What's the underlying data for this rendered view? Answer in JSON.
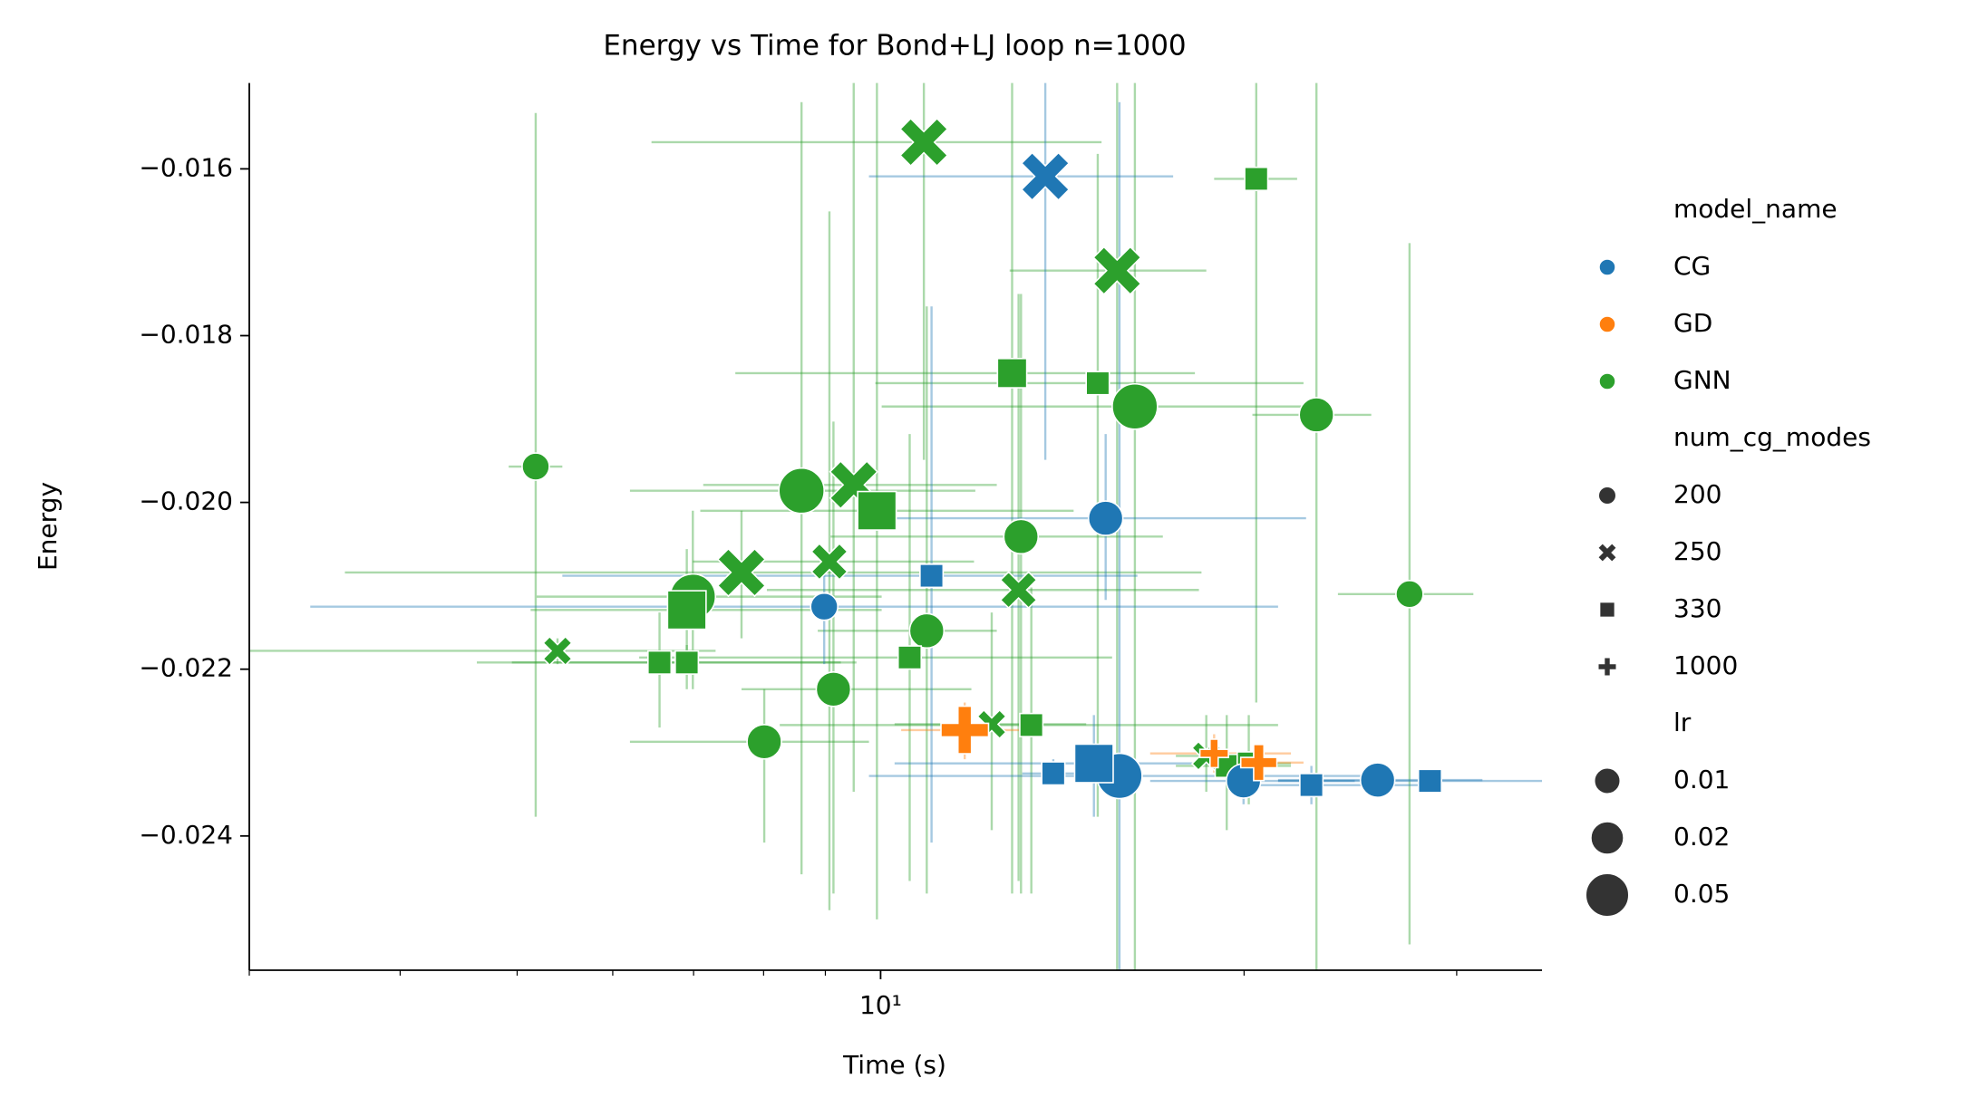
{
  "chart_data": {
    "type": "scatter",
    "title": "Energy vs Time for Bond+LJ loop n=1000",
    "x_label": "Time (s)",
    "y_label": "Energy",
    "xscale": "log",
    "xlim": [
      3.0,
      35.3
    ],
    "ylim": [
      -0.02561,
      -0.01497
    ],
    "xticks": [
      {
        "value": 10,
        "label": "10¹"
      }
    ],
    "xminorticks": [
      3,
      4,
      5,
      6,
      7,
      8,
      9,
      20,
      30
    ],
    "yticks": [
      {
        "value": -0.016,
        "label": "−0.016"
      },
      {
        "value": -0.018,
        "label": "−0.018"
      },
      {
        "value": -0.02,
        "label": "−0.020"
      },
      {
        "value": -0.022,
        "label": "−0.022"
      },
      {
        "value": -0.024,
        "label": "−0.024"
      }
    ],
    "hue": {
      "title": "model_name",
      "levels": [
        {
          "name": "CG",
          "color": "#1f77b4"
        },
        {
          "name": "GD",
          "color": "#ff7f0e"
        },
        {
          "name": "GNN",
          "color": "#2ca02c"
        }
      ]
    },
    "style": {
      "title": "num_cg_modes",
      "levels": [
        {
          "name": "200",
          "marker": "circle"
        },
        {
          "name": "250",
          "marker": "x"
        },
        {
          "name": "330",
          "marker": "square"
        },
        {
          "name": "1000",
          "marker": "plus"
        }
      ]
    },
    "size": {
      "title": "lr",
      "levels": [
        "0.01",
        "0.02",
        "0.05"
      ]
    },
    "points": [
      {
        "hue": "GNN",
        "style": "250",
        "size": "0.05",
        "x": 10.86,
        "xmin": 6.46,
        "xmax": 15.24,
        "y": -0.01568,
        "ymin": -0.01949,
        "ymax": -0.0149
      },
      {
        "hue": "GNN",
        "style": "250",
        "size": "0.05",
        "x": 15.7,
        "xmin": 12.79,
        "xmax": 18.61,
        "y": -0.01722,
        "ymin": -0.02576,
        "ymax": -0.0149
      },
      {
        "hue": "GNN",
        "style": "330",
        "size": "0.01",
        "x": 20.47,
        "xmin": 18.89,
        "xmax": 22.13,
        "y": -0.01612,
        "ymin": -0.0224,
        "ymax": -0.0149
      },
      {
        "hue": "GNN",
        "style": "330",
        "size": "0.02",
        "x": 12.85,
        "xmin": 7.58,
        "xmax": 18.21,
        "y": -0.01845,
        "ymin": -0.02469,
        "ymax": -0.0149
      },
      {
        "hue": "GNN",
        "style": "330",
        "size": "0.01",
        "x": 15.13,
        "xmin": 9.9,
        "xmax": 22.4,
        "y": -0.01857,
        "ymin": -0.02377,
        "ymax": -0.01582
      },
      {
        "hue": "GNN",
        "style": "200",
        "size": "0.05",
        "x": 16.24,
        "xmin": 10.02,
        "xmax": 22.4,
        "y": -0.01885,
        "ymin": -0.02576,
        "ymax": -0.0149
      },
      {
        "hue": "GNN",
        "style": "200",
        "size": "0.02",
        "x": 22.96,
        "xmin": 20.32,
        "xmax": 25.49,
        "y": -0.01895,
        "ymin": -0.02576,
        "ymax": -0.0149
      },
      {
        "hue": "GNN",
        "style": "200",
        "size": "0.01",
        "x": 5.18,
        "xmin": 4.92,
        "xmax": 5.45,
        "y": -0.01957,
        "ymin": -0.02377,
        "ymax": -0.01533
      },
      {
        "hue": "GNN",
        "style": "200",
        "size": "0.05",
        "x": 8.6,
        "xmin": 6.2,
        "xmax": 11.98,
        "y": -0.01986,
        "ymin": -0.02446,
        "ymax": -0.0152
      },
      {
        "hue": "GNN",
        "style": "250",
        "size": "0.05",
        "x": 9.5,
        "xmin": 7.13,
        "xmax": 12.48,
        "y": -0.01979,
        "ymin": -0.02347,
        "ymax": -0.0149
      },
      {
        "hue": "GNN",
        "style": "330",
        "size": "0.05",
        "x": 9.93,
        "xmin": 7.09,
        "xmax": 14.45,
        "y": -0.0201,
        "ymin": -0.025,
        "ymax": -0.0149
      },
      {
        "hue": "GNN",
        "style": "200",
        "size": "0.02",
        "x": 13.07,
        "xmin": 9.09,
        "xmax": 17.13,
        "y": -0.02041,
        "ymin": -0.02469,
        "ymax": -0.0175
      },
      {
        "hue": "GNN",
        "style": "250",
        "size": "0.02",
        "x": 9.07,
        "xmin": 6.99,
        "xmax": 11.95,
        "y": -0.02071,
        "ymin": -0.02489,
        "ymax": -0.01651
      },
      {
        "hue": "GNN",
        "style": "250",
        "size": "0.05",
        "x": 7.67,
        "xmin": 3.6,
        "xmax": 18.44,
        "y": -0.02084,
        "ymin": -0.02163,
        "ymax": -0.0201
      },
      {
        "hue": "GNN",
        "style": "200",
        "size": "0.05",
        "x": 6.99,
        "xmin": 5.19,
        "xmax": 10.02,
        "y": -0.02113,
        "ymin": -0.02224,
        "ymax": -0.0201
      },
      {
        "hue": "GNN",
        "style": "250",
        "size": "0.02",
        "x": 13.01,
        "xmin": 8.05,
        "xmax": 18.35,
        "y": -0.02105,
        "ymin": -0.02454,
        "ymax": -0.0175
      },
      {
        "hue": "GNN",
        "style": "200",
        "size": "0.01",
        "x": 27.42,
        "xmin": 23.92,
        "xmax": 30.97,
        "y": -0.0211,
        "ymin": -0.0253,
        "ymax": -0.01689
      },
      {
        "hue": "GNN",
        "style": "330",
        "size": "0.05",
        "x": 6.91,
        "xmin": 5.13,
        "xmax": 10.02,
        "y": -0.02129,
        "ymin": -0.02194,
        "ymax": -0.02056
      },
      {
        "hue": "GNN",
        "style": "200",
        "size": "0.02",
        "x": 10.92,
        "xmin": 8.87,
        "xmax": 12.48,
        "y": -0.02154,
        "ymin": -0.02469,
        "ymax": -0.01765
      },
      {
        "hue": "GNN",
        "style": "250",
        "size": "0.01",
        "x": 5.4,
        "xmin": 2.9,
        "xmax": 7.3,
        "y": -0.02178,
        "ymin": -0.02194,
        "ymax": -0.02163
      },
      {
        "hue": "GNN",
        "style": "330",
        "size": "0.01",
        "x": 6.56,
        "xmin": 4.63,
        "xmax": 9.27,
        "y": -0.02192,
        "ymin": -0.0227,
        "ymax": -0.02132
      },
      {
        "hue": "GNN",
        "style": "330",
        "size": "0.01",
        "x": 6.91,
        "xmin": 4.95,
        "xmax": 9.55,
        "y": -0.02192,
        "ymin": -0.02224,
        "ymax": -0.02171
      },
      {
        "hue": "GNN",
        "style": "330",
        "size": "0.01",
        "x": 10.57,
        "xmin": 6.31,
        "xmax": 15.55,
        "y": -0.02186,
        "ymin": -0.02454,
        "ymax": -0.01918
      },
      {
        "hue": "GNN",
        "style": "200",
        "size": "0.02",
        "x": 9.14,
        "xmin": 7.67,
        "xmax": 11.89,
        "y": -0.02224,
        "ymin": -0.02469,
        "ymax": -0.01903
      },
      {
        "hue": "GNN",
        "style": "200",
        "size": "0.02",
        "x": 8.01,
        "xmin": 6.2,
        "xmax": 9.78,
        "y": -0.02287,
        "ymin": -0.02408,
        "ymax": -0.02224
      },
      {
        "hue": "GNN",
        "style": "250",
        "size": "0.01",
        "x": 12.36,
        "xmin": 10.27,
        "xmax": 14.8,
        "y": -0.02266,
        "ymin": -0.02393,
        "ymax": -0.02132
      },
      {
        "hue": "GNN",
        "style": "330",
        "size": "0.01",
        "x": 13.33,
        "xmin": 8.25,
        "xmax": 21.34,
        "y": -0.02267,
        "ymin": -0.02469,
        "ymax": -0.02102
      },
      {
        "hue": "GNN",
        "style": "250",
        "size": "0.01",
        "x": 18.61,
        "xmin": 17.56,
        "xmax": 20.32,
        "y": -0.02304,
        "ymin": -0.02347,
        "ymax": -0.02255
      },
      {
        "hue": "GNN",
        "style": "330",
        "size": "0.01",
        "x": 19.35,
        "xmin": 17.56,
        "xmax": 21.87,
        "y": -0.02316,
        "ymin": -0.02393,
        "ymax": -0.02255
      },
      {
        "hue": "GNN",
        "style": "330",
        "size": "0.01",
        "x": 20.18,
        "xmin": 18.44,
        "xmax": 21.87,
        "y": -0.02313,
        "ymin": -0.02362,
        "ymax": -0.02255
      },
      {
        "hue": "CG",
        "style": "250",
        "size": "0.05",
        "x": 13.69,
        "xmin": 9.78,
        "xmax": 17.47,
        "y": -0.01609,
        "ymin": -0.01949,
        "ymax": -0.0149
      },
      {
        "hue": "CG",
        "style": "200",
        "size": "0.02",
        "x": 15.36,
        "xmin": 10.02,
        "xmax": 22.51,
        "y": -0.02019,
        "ymin": -0.02117,
        "ymax": -0.01918
      },
      {
        "hue": "CG",
        "style": "200",
        "size": "0.01",
        "x": 8.98,
        "xmin": 3.37,
        "xmax": 21.34,
        "y": -0.02125,
        "ymin": -0.02194,
        "ymax": -0.02056
      },
      {
        "hue": "CG",
        "style": "330",
        "size": "0.01",
        "x": 11.02,
        "xmin": 5.45,
        "xmax": 16.32,
        "y": -0.02088,
        "ymin": -0.02408,
        "ymax": -0.01765
      },
      {
        "hue": "CG",
        "style": "200",
        "size": "0.05",
        "x": 15.77,
        "xmin": 9.78,
        "xmax": 25.31,
        "y": -0.02328,
        "ymin": -0.02576,
        "ymax": -0.0152
      },
      {
        "hue": "CG",
        "style": "330",
        "size": "0.05",
        "x": 15.02,
        "xmin": 10.27,
        "xmax": 21.34,
        "y": -0.02313,
        "ymin": -0.02377,
        "ymax": -0.02255
      },
      {
        "hue": "CG",
        "style": "330",
        "size": "0.01",
        "x": 13.9,
        "xmin": 13.1,
        "xmax": 15.55,
        "y": -0.02325,
        "ymin": -0.02339,
        "ymax": -0.02308
      },
      {
        "hue": "CG",
        "style": "200",
        "size": "0.02",
        "x": 19.98,
        "xmin": 16.72,
        "xmax": 24.7,
        "y": -0.02334,
        "ymin": -0.02362,
        "ymax": -0.02301
      },
      {
        "hue": "CG",
        "style": "330",
        "size": "0.01",
        "x": 22.74,
        "xmin": 19.35,
        "xmax": 27.9,
        "y": -0.02339,
        "ymin": -0.02362,
        "ymax": -0.02316
      },
      {
        "hue": "CG",
        "style": "200",
        "size": "0.02",
        "x": 25.8,
        "xmin": 21.34,
        "xmax": 31.51,
        "y": -0.02333,
        "ymin": -0.02354,
        "ymax": -0.02316
      },
      {
        "hue": "CG",
        "style": "330",
        "size": "0.01",
        "x": 28.51,
        "xmin": 21.34,
        "xmax": 36.48,
        "y": -0.02334,
        "ymin": -0.02347,
        "ymax": -0.02324
      },
      {
        "hue": "GD",
        "style": "1000",
        "size": "0.05",
        "x": 11.74,
        "xmin": 10.4,
        "xmax": 13.1,
        "y": -0.02273,
        "ymin": -0.02308,
        "ymax": -0.0224
      },
      {
        "hue": "GD",
        "style": "1000",
        "size": "0.01",
        "x": 18.89,
        "xmin": 16.72,
        "xmax": 21.87,
        "y": -0.02301,
        "ymin": -0.02324,
        "ymax": -0.02278
      },
      {
        "hue": "GD",
        "style": "1000",
        "size": "0.02",
        "x": 20.57,
        "xmin": 19.35,
        "xmax": 22.4,
        "y": -0.02312,
        "ymin": -0.02331,
        "ymax": -0.02293
      }
    ]
  }
}
